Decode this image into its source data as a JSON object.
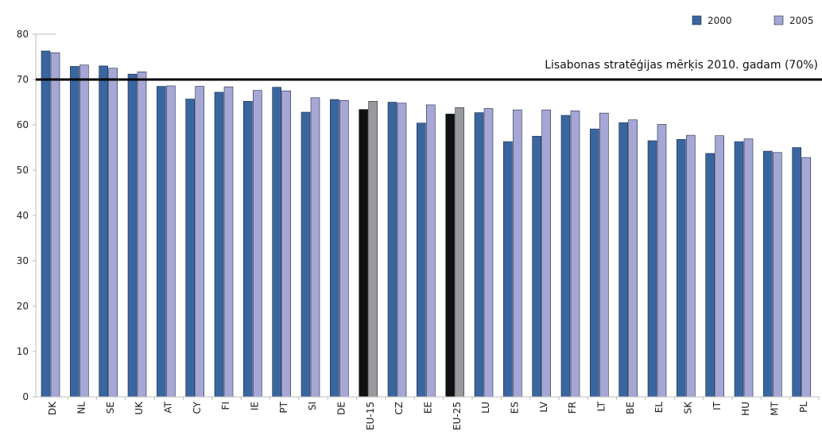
{
  "chart_data": {
    "type": "bar",
    "categories": [
      "DK",
      "NL",
      "SE",
      "UK",
      "AT",
      "CY",
      "FI",
      "IE",
      "PT",
      "SI",
      "DE",
      "EU-15",
      "CZ",
      "EE",
      "EU-25",
      "LU",
      "ES",
      "LV",
      "FR",
      "LT",
      "BE",
      "EL",
      "SK",
      "IT",
      "HU",
      "MT",
      "PL"
    ],
    "series": [
      {
        "name": "2000",
        "values": [
          76.3,
          72.9,
          73.0,
          71.2,
          68.5,
          65.7,
          67.2,
          65.2,
          68.3,
          62.8,
          65.6,
          63.4,
          65.0,
          60.4,
          62.4,
          62.7,
          56.3,
          57.5,
          62.1,
          59.1,
          60.5,
          56.5,
          56.8,
          53.7,
          56.3,
          54.2,
          55.0
        ]
      },
      {
        "name": "2005",
        "values": [
          75.9,
          73.2,
          72.5,
          71.7,
          68.6,
          68.5,
          68.4,
          67.6,
          67.5,
          66.0,
          65.4,
          65.2,
          64.8,
          64.4,
          63.8,
          63.6,
          63.3,
          63.3,
          63.1,
          62.6,
          61.1,
          60.1,
          57.7,
          57.6,
          56.9,
          53.9,
          52.8
        ]
      }
    ],
    "highlight_categories": [
      "EU-15",
      "EU-25"
    ],
    "colors": {
      "2000": "#3a66a0",
      "2005": "#a7a7d6",
      "eu_2000": "#111111",
      "eu_2005": "#9a9a9a"
    },
    "ylim": [
      0,
      80
    ],
    "yticks": [
      "0",
      "10",
      "20",
      "30",
      "40",
      "50",
      "60",
      "70",
      "80"
    ],
    "target_value": 70,
    "target_label": "Lisabonas stratēģijas mērķis 2010. gadam (70%)",
    "legend": {
      "position": "top-right",
      "items": [
        "2000",
        "2005"
      ]
    },
    "grid": false
  }
}
